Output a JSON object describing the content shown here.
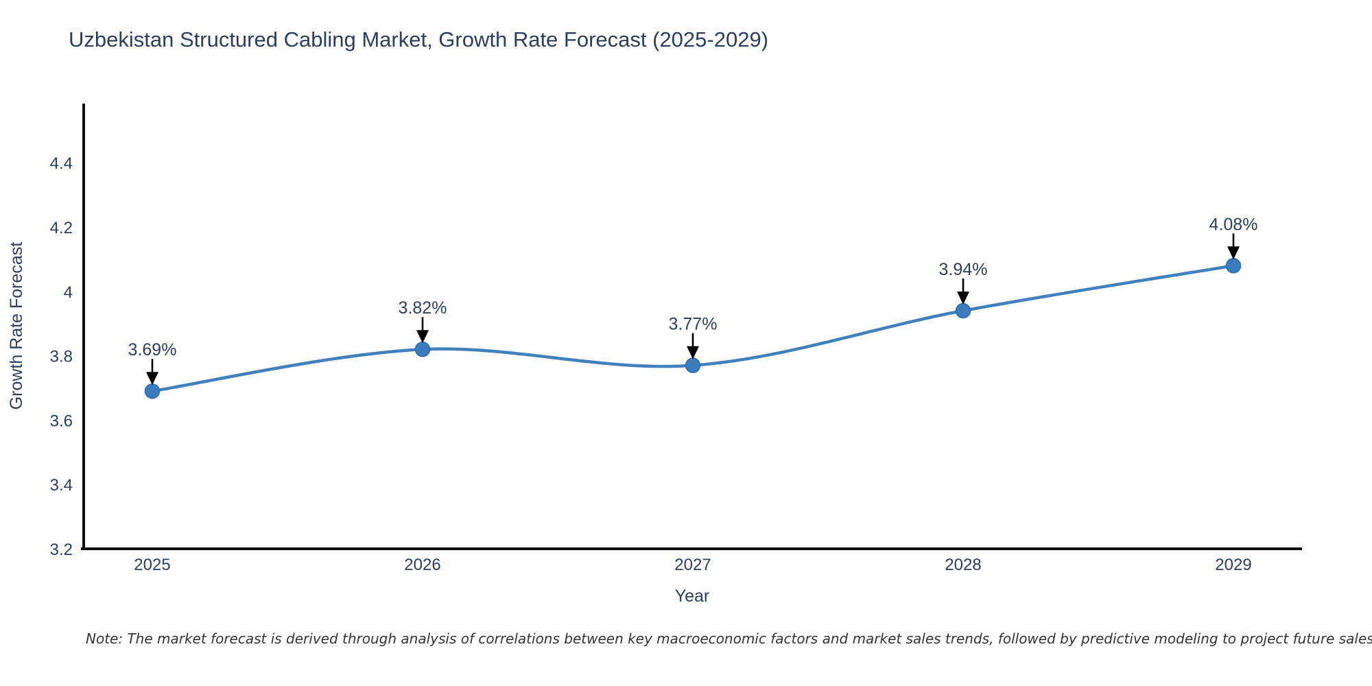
{
  "page": {
    "title": "Uzbekistan Structured Cabling Market, Growth Rate Forecast (2025-2029)",
    "note": "Note: The market forecast is derived through analysis of correlations between key macroeconomic factors and market sales trends, followed by predictive modeling to project future sales."
  },
  "chart_data": {
    "type": "line",
    "title": "Uzbekistan Structured Cabling Market, Growth Rate Forecast (2025-2029)",
    "xlabel": "Year",
    "ylabel": "Growth Rate Forecast",
    "x": [
      2025,
      2026,
      2027,
      2028,
      2029
    ],
    "values": [
      3.69,
      3.82,
      3.77,
      3.94,
      4.08
    ],
    "labels": [
      "3.69%",
      "3.82%",
      "3.77%",
      "3.94%",
      "4.08%"
    ],
    "y_ticks": [
      3.2,
      3.4,
      3.6,
      3.8,
      4,
      4.2,
      4.4
    ],
    "ylim": [
      3.2,
      4.58
    ],
    "grid": false,
    "legend": "none",
    "line_shape": "spline",
    "marker_style": "circle",
    "annotation_style": "arrow-down",
    "colors": {
      "line": "#4080bd",
      "marker": "#3a7cbc",
      "axis": "#111111",
      "text": "#2a3f5f",
      "annotation_arrow": "#000000",
      "note_text": "#333333",
      "background": "#ffffff"
    },
    "note": "Note: The market forecast is derived through analysis of correlations between key macroeconomic factors and market sales trends, followed by predictive modeling to project future sales."
  }
}
